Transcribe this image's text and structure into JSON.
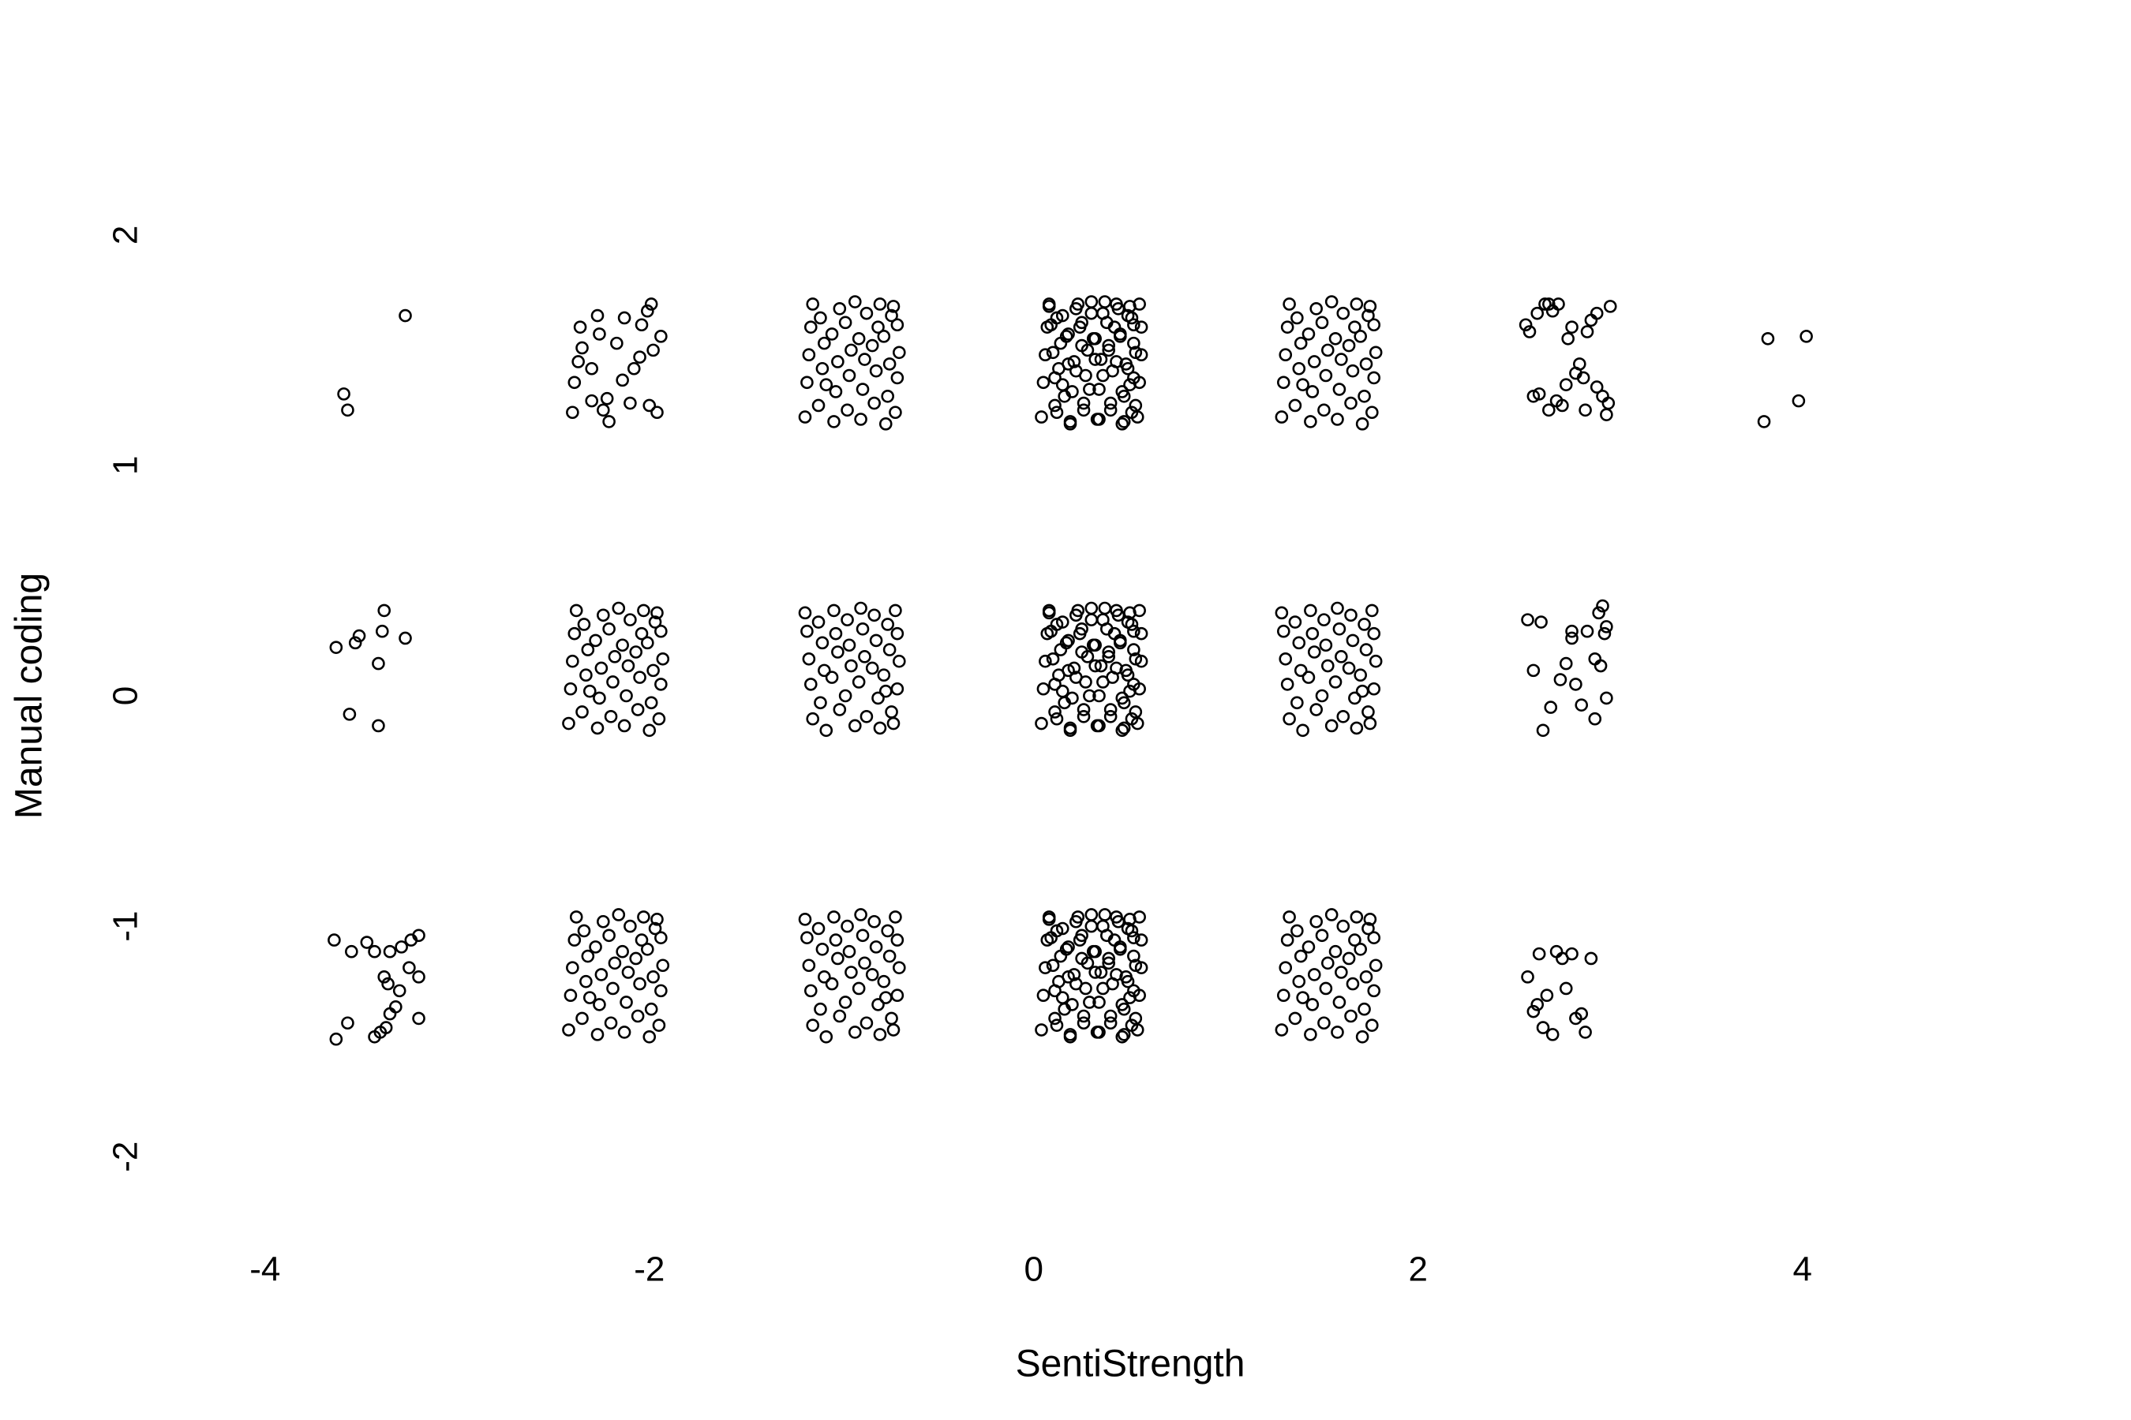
{
  "chart_data": {
    "type": "scatter",
    "xlabel": "SentiStrength",
    "ylabel": "Manual coding",
    "xlim": [
      -4.5,
      5.5
    ],
    "ylim": [
      -2.4,
      2.4
    ],
    "xticks": [
      -4,
      -2,
      0,
      2,
      4
    ],
    "yticks": [
      -2,
      -1,
      0,
      1,
      2
    ],
    "color": "#000000",
    "grid": false,
    "x": [
      -3.27,
      -3.59,
      -3.57,
      -3.63,
      -3.53,
      -3.51,
      -3.39,
      -3.27,
      -3.38,
      -3.41,
      -3.56,
      -3.41,
      -3.64,
      -3.55,
      -3.47,
      -3.43,
      -3.35,
      -3.29,
      -3.24,
      -3.2,
      -3.2,
      -3.25,
      -3.38,
      -3.36,
      -3.3,
      -3.32,
      -3.35,
      -3.2,
      -3.37,
      -3.4,
      -3.43,
      -3.57,
      -3.63,
      -2.4,
      -2.39,
      -2.37,
      -2.36,
      -2.35,
      -2.3,
      -2.27,
      -2.26,
      -2.24,
      -2.22,
      -2.21,
      -2.17,
      -2.13,
      -2.1,
      -2.08,
      -2.05,
      -2.04,
      -2.01,
      -1.99,
      -1.98,
      -1.96,
      -1.94,
      -2.0,
      -2.14,
      -2.3,
      -2.42,
      -2.41,
      -2.4,
      -2.39,
      -2.38,
      -2.35,
      -2.33,
      -2.32,
      -2.34,
      -2.31,
      -2.27,
      -2.26,
      -2.25,
      -2.28,
      -2.24,
      -2.2,
      -2.19,
      -2.18,
      -2.21,
      -2.16,
      -2.13,
      -2.12,
      -2.11,
      -2.14,
      -2.1,
      -2.06,
      -2.05,
      -2.07,
      -2.04,
      -2.03,
      -2.0,
      -1.99,
      -1.98,
      -2.01,
      -1.97,
      -1.95,
      -1.94,
      -1.93,
      -1.94,
      -1.96,
      -2.42,
      -2.41,
      -2.4,
      -2.39,
      -2.38,
      -2.35,
      -2.33,
      -2.32,
      -2.34,
      -2.31,
      -2.27,
      -2.26,
      -2.25,
      -2.28,
      -2.24,
      -2.2,
      -2.19,
      -2.18,
      -2.21,
      -2.16,
      -2.13,
      -2.12,
      -2.11,
      -2.14,
      -2.1,
      -2.06,
      -2.05,
      -2.07,
      -2.04,
      -2.03,
      -2.0,
      -1.99,
      -1.98,
      -2.01,
      -1.97,
      -1.95,
      -1.94,
      -1.93,
      -1.94,
      -1.96,
      -1.19,
      -1.18,
      -1.17,
      -1.16,
      -1.15,
      -1.12,
      -1.1,
      -1.09,
      -1.11,
      -1.08,
      -1.04,
      -1.03,
      -1.02,
      -1.05,
      -1.01,
      -0.97,
      -0.96,
      -0.95,
      -0.98,
      -0.93,
      -0.9,
      -0.89,
      -0.88,
      -0.91,
      -0.87,
      -0.83,
      -0.82,
      -0.84,
      -0.81,
      -0.8,
      -0.77,
      -0.76,
      -0.75,
      -0.78,
      -0.74,
      -0.72,
      -0.71,
      -0.7,
      -0.71,
      -0.73,
      -1.19,
      -1.18,
      -1.17,
      -1.16,
      -1.15,
      -1.12,
      -1.1,
      -1.09,
      -1.11,
      -1.08,
      -1.04,
      -1.03,
      -1.02,
      -1.05,
      -1.01,
      -0.97,
      -0.96,
      -0.95,
      -0.98,
      -0.93,
      -0.9,
      -0.89,
      -0.88,
      -0.91,
      -0.87,
      -0.83,
      -0.82,
      -0.84,
      -0.81,
      -0.8,
      -0.77,
      -0.76,
      -0.75,
      -0.78,
      -0.74,
      -0.72,
      -0.71,
      -0.7,
      -0.71,
      -0.73,
      -1.19,
      -1.18,
      -1.17,
      -1.16,
      -1.15,
      -1.12,
      -1.1,
      -1.09,
      -1.11,
      -1.08,
      -1.04,
      -1.03,
      -1.02,
      -1.05,
      -1.01,
      -0.97,
      -0.96,
      -0.95,
      -0.98,
      -0.93,
      -0.9,
      -0.89,
      -0.88,
      -0.91,
      -0.87,
      -0.83,
      -0.82,
      -0.84,
      -0.81,
      -0.8,
      -0.77,
      -0.76,
      -0.75,
      -0.78,
      -0.74,
      -0.72,
      -0.71,
      -0.7,
      -0.71,
      -0.73,
      0.04,
      0.05,
      0.06,
      0.07,
      0.08,
      0.11,
      0.13,
      0.14,
      0.12,
      0.15,
      0.19,
      0.2,
      0.21,
      0.18,
      0.22,
      0.26,
      0.27,
      0.28,
      0.25,
      0.3,
      0.33,
      0.34,
      0.35,
      0.32,
      0.36,
      0.4,
      0.41,
      0.39,
      0.42,
      0.43,
      0.46,
      0.47,
      0.48,
      0.45,
      0.49,
      0.51,
      0.52,
      0.53,
      0.52,
      0.5,
      0.08,
      0.09,
      0.1,
      0.11,
      0.12,
      0.15,
      0.17,
      0.18,
      0.16,
      0.19,
      0.23,
      0.24,
      0.25,
      0.22,
      0.26,
      0.3,
      0.31,
      0.32,
      0.29,
      0.34,
      0.37,
      0.38,
      0.39,
      0.36,
      0.4,
      0.44,
      0.45,
      0.43,
      0.46,
      0.47,
      0.5,
      0.51,
      0.52,
      0.49,
      0.53,
      0.55,
      0.56,
      0.56,
      0.55,
      0.54,
      0.04,
      0.05,
      0.06,
      0.07,
      0.08,
      0.11,
      0.13,
      0.14,
      0.12,
      0.15,
      0.19,
      0.2,
      0.21,
      0.18,
      0.22,
      0.26,
      0.27,
      0.28,
      0.25,
      0.3,
      0.33,
      0.34,
      0.35,
      0.32,
      0.36,
      0.4,
      0.41,
      0.39,
      0.42,
      0.43,
      0.46,
      0.47,
      0.48,
      0.45,
      0.49,
      0.51,
      0.52,
      0.53,
      0.52,
      0.5,
      0.08,
      0.09,
      0.1,
      0.11,
      0.12,
      0.15,
      0.17,
      0.18,
      0.16,
      0.19,
      0.23,
      0.24,
      0.25,
      0.22,
      0.26,
      0.3,
      0.31,
      0.32,
      0.29,
      0.34,
      0.37,
      0.38,
      0.39,
      0.36,
      0.4,
      0.44,
      0.45,
      0.43,
      0.46,
      0.47,
      0.5,
      0.51,
      0.52,
      0.49,
      0.53,
      0.55,
      0.56,
      0.56,
      0.55,
      0.54,
      0.04,
      0.05,
      0.06,
      0.07,
      0.08,
      0.11,
      0.13,
      0.14,
      0.12,
      0.15,
      0.19,
      0.2,
      0.21,
      0.18,
      0.22,
      0.26,
      0.27,
      0.28,
      0.25,
      0.3,
      0.33,
      0.34,
      0.35,
      0.32,
      0.36,
      0.4,
      0.41,
      0.39,
      0.42,
      0.43,
      0.46,
      0.47,
      0.48,
      0.45,
      0.49,
      0.51,
      0.52,
      0.53,
      0.52,
      0.5,
      0.08,
      0.09,
      0.1,
      0.11,
      0.12,
      0.15,
      0.17,
      0.18,
      0.16,
      0.19,
      0.23,
      0.24,
      0.25,
      0.22,
      0.26,
      0.3,
      0.31,
      0.32,
      0.29,
      0.34,
      0.37,
      0.38,
      0.39,
      0.36,
      0.4,
      0.44,
      0.45,
      0.43,
      0.46,
      0.47,
      0.5,
      0.51,
      0.52,
      0.49,
      0.53,
      0.55,
      0.56,
      0.56,
      0.55,
      0.54,
      1.29,
      1.3,
      1.31,
      1.32,
      1.33,
      1.36,
      1.38,
      1.39,
      1.37,
      1.4,
      1.44,
      1.45,
      1.46,
      1.43,
      1.47,
      1.51,
      1.52,
      1.53,
      1.5,
      1.55,
      1.58,
      1.59,
      1.6,
      1.57,
      1.61,
      1.65,
      1.66,
      1.64,
      1.67,
      1.68,
      1.71,
      1.72,
      1.73,
      1.7,
      1.74,
      1.76,
      1.77,
      1.78,
      1.77,
      1.75,
      1.29,
      1.3,
      1.31,
      1.32,
      1.33,
      1.36,
      1.38,
      1.39,
      1.37,
      1.4,
      1.44,
      1.45,
      1.46,
      1.43,
      1.47,
      1.51,
      1.52,
      1.53,
      1.5,
      1.55,
      1.58,
      1.59,
      1.6,
      1.57,
      1.61,
      1.65,
      1.66,
      1.64,
      1.67,
      1.68,
      1.71,
      1.72,
      1.73,
      1.7,
      1.74,
      1.76,
      1.77,
      1.78,
      1.77,
      1.75,
      1.29,
      1.3,
      1.31,
      1.32,
      1.33,
      1.36,
      1.38,
      1.39,
      1.37,
      1.4,
      1.44,
      1.45,
      1.46,
      1.43,
      1.47,
      1.51,
      1.52,
      1.53,
      1.5,
      1.55,
      1.58,
      1.59,
      1.6,
      1.57,
      1.61,
      1.65,
      1.66,
      1.64,
      1.67,
      1.68,
      1.71,
      1.72,
      1.73,
      1.7,
      1.74,
      1.76,
      1.77,
      1.78,
      1.77,
      1.75,
      2.56,
      2.58,
      2.62,
      2.66,
      2.68,
      2.7,
      2.73,
      2.6,
      2.63,
      2.68,
      2.72,
      2.75,
      2.78,
      2.8,
      2.82,
      2.84,
      2.86,
      2.88,
      2.9,
      2.93,
      2.96,
      2.98,
      2.99,
      3.0,
      2.87,
      2.77,
      2.93,
      2.57,
      2.64,
      2.6,
      2.69,
      2.65,
      2.74,
      2.77,
      2.8,
      2.82,
      2.8,
      2.85,
      2.88,
      2.92,
      2.94,
      2.96,
      2.97,
      2.98,
      2.95,
      2.98,
      2.92,
      2.57,
      2.6,
      2.63,
      2.65,
      2.67,
      2.7,
      2.72,
      2.75,
      2.77,
      2.8,
      2.82,
      2.85,
      2.87,
      2.9,
      2.62,
      3.82,
      4.02,
      3.8,
      3.98
    ],
    "values": [
      1.65,
      1.31,
      1.24,
      0.21,
      0.23,
      0.26,
      0.28,
      0.25,
      0.37,
      0.14,
      -0.08,
      -0.13,
      -1.06,
      -1.11,
      -1.07,
      -1.11,
      -1.11,
      -1.09,
      -1.06,
      -1.04,
      -1.22,
      -1.18,
      -1.22,
      -1.25,
      -1.28,
      -1.35,
      -1.38,
      -1.4,
      -1.44,
      -1.46,
      -1.48,
      -1.42,
      -1.49,
      1.23,
      1.36,
      1.45,
      1.6,
      1.51,
      1.42,
      1.65,
      1.57,
      1.24,
      1.29,
      1.19,
      1.53,
      1.64,
      1.27,
      1.42,
      1.47,
      1.61,
      1.67,
      1.7,
      1.5,
      1.23,
      1.56,
      1.26,
      1.37,
      1.28,
      -0.12,
      0.03,
      0.15,
      0.27,
      0.37,
      -0.07,
      0.09,
      0.2,
      0.31,
      0.02,
      -0.14,
      -0.01,
      0.12,
      0.24,
      0.35,
      -0.09,
      0.06,
      0.17,
      0.29,
      0.38,
      -0.13,
      0.0,
      0.13,
      0.22,
      0.33,
      -0.06,
      0.08,
      0.19,
      0.27,
      0.37,
      -0.15,
      -0.03,
      0.11,
      0.23,
      0.32,
      -0.1,
      0.05,
      0.16,
      0.28,
      0.36,
      -1.45,
      -1.3,
      -1.18,
      -1.06,
      -0.96,
      -1.4,
      -1.24,
      -1.13,
      -1.02,
      -1.31,
      -1.47,
      -1.34,
      -1.21,
      -1.09,
      -0.98,
      -1.42,
      -1.27,
      -1.16,
      -1.04,
      -0.95,
      -1.46,
      -1.33,
      -1.2,
      -1.11,
      -1.0,
      -1.39,
      -1.25,
      -1.14,
      -1.06,
      -0.96,
      -1.48,
      -1.36,
      -1.22,
      -1.1,
      -1.01,
      -1.43,
      -1.28,
      -1.17,
      -1.05,
      -0.97,
      1.21,
      1.36,
      1.48,
      1.6,
      1.7,
      1.26,
      1.42,
      1.53,
      1.64,
      1.35,
      1.19,
      1.32,
      1.45,
      1.57,
      1.68,
      1.24,
      1.39,
      1.5,
      1.62,
      1.71,
      1.2,
      1.33,
      1.46,
      1.55,
      1.66,
      1.27,
      1.41,
      1.52,
      1.6,
      1.7,
      1.18,
      1.3,
      1.44,
      1.56,
      1.65,
      1.23,
      1.38,
      1.49,
      1.61,
      1.69,
      0.36,
      0.28,
      0.16,
      0.05,
      -0.1,
      0.32,
      0.23,
      0.11,
      -0.03,
      -0.15,
      0.37,
      0.27,
      0.19,
      0.08,
      -0.06,
      0.33,
      0.22,
      0.13,
      0.0,
      -0.13,
      0.38,
      0.29,
      0.17,
      0.06,
      -0.09,
      0.35,
      0.24,
      0.12,
      -0.01,
      -0.14,
      0.02,
      0.31,
      0.2,
      0.09,
      -0.07,
      0.37,
      0.27,
      0.15,
      0.03,
      -0.12,
      -0.97,
      -1.05,
      -1.17,
      -1.28,
      -1.43,
      -1.01,
      -1.1,
      -1.22,
      -1.36,
      -1.48,
      -0.96,
      -1.06,
      -1.14,
      -1.25,
      -1.39,
      -1.0,
      -1.11,
      -1.2,
      -1.33,
      -1.46,
      -0.95,
      -1.04,
      -1.16,
      -1.27,
      -1.42,
      -0.98,
      -1.09,
      -1.21,
      -1.34,
      -1.47,
      -1.31,
      -1.02,
      -1.13,
      -1.24,
      -1.4,
      -0.96,
      -1.06,
      -1.18,
      -1.3,
      -1.45,
      1.21,
      1.36,
      1.48,
      1.6,
      1.7,
      1.26,
      1.42,
      1.53,
      1.64,
      1.35,
      1.19,
      1.32,
      1.45,
      1.57,
      1.68,
      1.24,
      1.39,
      1.5,
      1.62,
      1.71,
      1.2,
      1.33,
      1.46,
      1.55,
      1.66,
      1.27,
      1.41,
      1.52,
      1.6,
      1.7,
      1.18,
      1.3,
      1.44,
      1.56,
      1.65,
      1.23,
      1.38,
      1.49,
      1.61,
      1.69,
      1.69,
      1.61,
      1.49,
      1.38,
      1.23,
      1.65,
      1.56,
      1.44,
      1.3,
      1.18,
      1.7,
      1.6,
      1.52,
      1.41,
      1.27,
      1.66,
      1.55,
      1.46,
      1.33,
      1.2,
      1.71,
      1.62,
      1.5,
      1.39,
      1.24,
      1.68,
      1.57,
      1.45,
      1.32,
      1.19,
      1.35,
      1.64,
      1.53,
      1.42,
      1.26,
      1.7,
      1.6,
      1.48,
      1.36,
      1.21,
      -0.12,
      0.03,
      0.15,
      0.27,
      0.37,
      -0.07,
      0.09,
      0.2,
      0.31,
      0.02,
      -0.14,
      -0.01,
      0.12,
      0.24,
      0.35,
      -0.09,
      0.06,
      0.17,
      0.29,
      0.38,
      -0.13,
      0.0,
      0.13,
      0.22,
      0.33,
      -0.06,
      0.08,
      0.19,
      0.27,
      0.37,
      -0.15,
      -0.03,
      0.11,
      0.23,
      0.32,
      -0.1,
      0.05,
      0.16,
      0.28,
      0.36,
      0.36,
      0.28,
      0.16,
      0.05,
      -0.1,
      0.32,
      0.23,
      0.11,
      -0.03,
      -0.15,
      0.37,
      0.27,
      0.19,
      0.08,
      -0.06,
      0.33,
      0.22,
      0.13,
      0.0,
      -0.13,
      0.38,
      0.29,
      0.17,
      0.06,
      -0.09,
      0.35,
      0.24,
      0.12,
      -0.01,
      -0.14,
      0.02,
      0.31,
      0.2,
      0.09,
      -0.07,
      0.37,
      0.27,
      0.15,
      0.03,
      -0.12,
      -1.45,
      -1.3,
      -1.18,
      -1.06,
      -0.96,
      -1.4,
      -1.24,
      -1.13,
      -1.02,
      -1.31,
      -1.47,
      -1.34,
      -1.21,
      -1.09,
      -0.98,
      -1.42,
      -1.27,
      -1.16,
      -1.04,
      -0.95,
      -1.46,
      -1.33,
      -1.2,
      -1.11,
      -1.0,
      -1.39,
      -1.25,
      -1.14,
      -1.06,
      -0.96,
      -1.48,
      -1.36,
      -1.22,
      -1.1,
      -1.01,
      -1.43,
      -1.28,
      -1.17,
      -1.05,
      -0.97,
      -0.97,
      -1.05,
      -1.17,
      -1.28,
      -1.43,
      -1.01,
      -1.1,
      -1.22,
      -1.36,
      -1.48,
      -0.96,
      -1.06,
      -1.14,
      -1.25,
      -1.39,
      -1.0,
      -1.11,
      -1.2,
      -1.33,
      -1.46,
      -0.95,
      -1.04,
      -1.16,
      -1.27,
      -1.42,
      -0.98,
      -1.09,
      -1.21,
      -1.34,
      -1.47,
      -1.31,
      -1.02,
      -1.13,
      -1.24,
      -1.4,
      -0.96,
      -1.06,
      -1.18,
      -1.3,
      -1.45,
      1.21,
      1.36,
      1.48,
      1.6,
      1.7,
      1.26,
      1.42,
      1.53,
      1.64,
      1.35,
      1.19,
      1.32,
      1.45,
      1.57,
      1.68,
      1.24,
      1.39,
      1.5,
      1.62,
      1.71,
      1.2,
      1.33,
      1.46,
      1.55,
      1.66,
      1.27,
      1.41,
      1.52,
      1.6,
      1.7,
      1.18,
      1.3,
      1.44,
      1.56,
      1.65,
      1.23,
      1.38,
      1.49,
      1.61,
      1.69,
      0.36,
      0.28,
      0.16,
      0.05,
      -0.1,
      0.32,
      0.23,
      0.11,
      -0.03,
      -0.15,
      0.37,
      0.27,
      0.19,
      0.08,
      -0.06,
      0.33,
      0.22,
      0.13,
      0.0,
      -0.13,
      0.38,
      0.29,
      0.17,
      0.06,
      -0.09,
      0.35,
      0.24,
      0.12,
      -0.01,
      -0.14,
      0.02,
      0.31,
      0.2,
      0.09,
      -0.07,
      0.37,
      0.27,
      0.15,
      0.03,
      -0.12,
      -1.45,
      -1.3,
      -1.18,
      -1.06,
      -0.96,
      -1.4,
      -1.24,
      -1.13,
      -1.02,
      -1.31,
      -1.47,
      -1.34,
      -1.21,
      -1.09,
      -0.98,
      -1.42,
      -1.27,
      -1.16,
      -1.04,
      -0.95,
      -1.46,
      -1.33,
      -1.2,
      -1.11,
      -1.0,
      -1.39,
      -1.25,
      -1.14,
      -1.06,
      -0.96,
      -1.48,
      -1.36,
      -1.22,
      -1.1,
      -1.01,
      -1.43,
      -1.28,
      -1.17,
      -1.05,
      -0.97,
      1.61,
      1.58,
      1.66,
      1.7,
      1.7,
      1.67,
      1.7,
      1.3,
      1.31,
      1.24,
      1.28,
      1.26,
      1.55,
      1.6,
      1.4,
      1.44,
      1.38,
      1.58,
      1.63,
      1.66,
      1.3,
      1.22,
      1.27,
      1.69,
      1.24,
      1.35,
      1.34,
      0.33,
      0.32,
      0.11,
      -0.05,
      -0.15,
      0.07,
      0.14,
      0.25,
      0.05,
      0.28,
      -0.04,
      0.28,
      0.16,
      0.36,
      0.39,
      0.27,
      0.3,
      0.13,
      -0.01,
      -0.1,
      -1.22,
      -1.37,
      -1.12,
      -1.44,
      -1.3,
      -1.47,
      -1.11,
      -1.14,
      -1.27,
      -1.12,
      -1.4,
      -1.38,
      -1.46,
      -1.14,
      -1.34,
      1.55,
      1.56,
      1.19,
      1.28
    ]
  }
}
